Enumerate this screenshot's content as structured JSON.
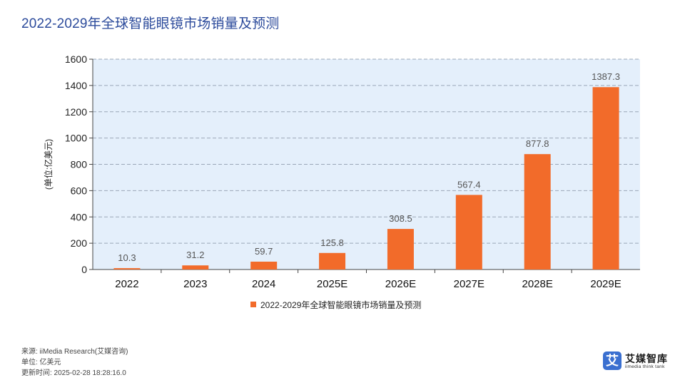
{
  "title": "2022-2029年全球智能眼镜市场销量及预测",
  "colors": {
    "title": "#2b4a9b",
    "bar": "#f26b2a",
    "plot_bg": "#e4effb",
    "grid": "#9aa7b8",
    "axis": "#444444",
    "label": "#555555"
  },
  "chart_data": {
    "type": "bar",
    "title": "2022-2029年全球智能眼镜市场销量及预测",
    "categories": [
      "2022",
      "2023",
      "2024",
      "2025E",
      "2026E",
      "2027E",
      "2028E",
      "2029E"
    ],
    "series": [
      {
        "name": "2022-2029年全球智能眼镜市场销量及预测",
        "values": [
          10.3,
          31.2,
          59.7,
          125.8,
          308.5,
          567.4,
          877.8,
          1387.3
        ],
        "labels": [
          "10.3",
          "31.2",
          "59.7",
          "125.8",
          "308.5",
          "567.4",
          "877.8",
          "1387.3"
        ]
      }
    ],
    "xlabel": "",
    "ylabel": "(单位:亿美元)",
    "ylim": [
      0,
      1600
    ],
    "yticks": [
      0,
      200,
      400,
      600,
      800,
      1000,
      1200,
      1400,
      1600
    ],
    "ytick_labels": [
      "0",
      "200",
      "400",
      "600",
      "800",
      "1000",
      "1200",
      "1400",
      "1600"
    ],
    "grid": true,
    "legend": "bottom-center"
  },
  "footer": {
    "source": "来源: iiMedia Research(艾媒咨询)",
    "unit": "单位: 亿美元",
    "updated": "更新时间: 2025-02-28 18:28:16.0"
  },
  "logo": {
    "mark": "艾",
    "name": "艾媒智库",
    "tagline": "iimedia think tank"
  }
}
